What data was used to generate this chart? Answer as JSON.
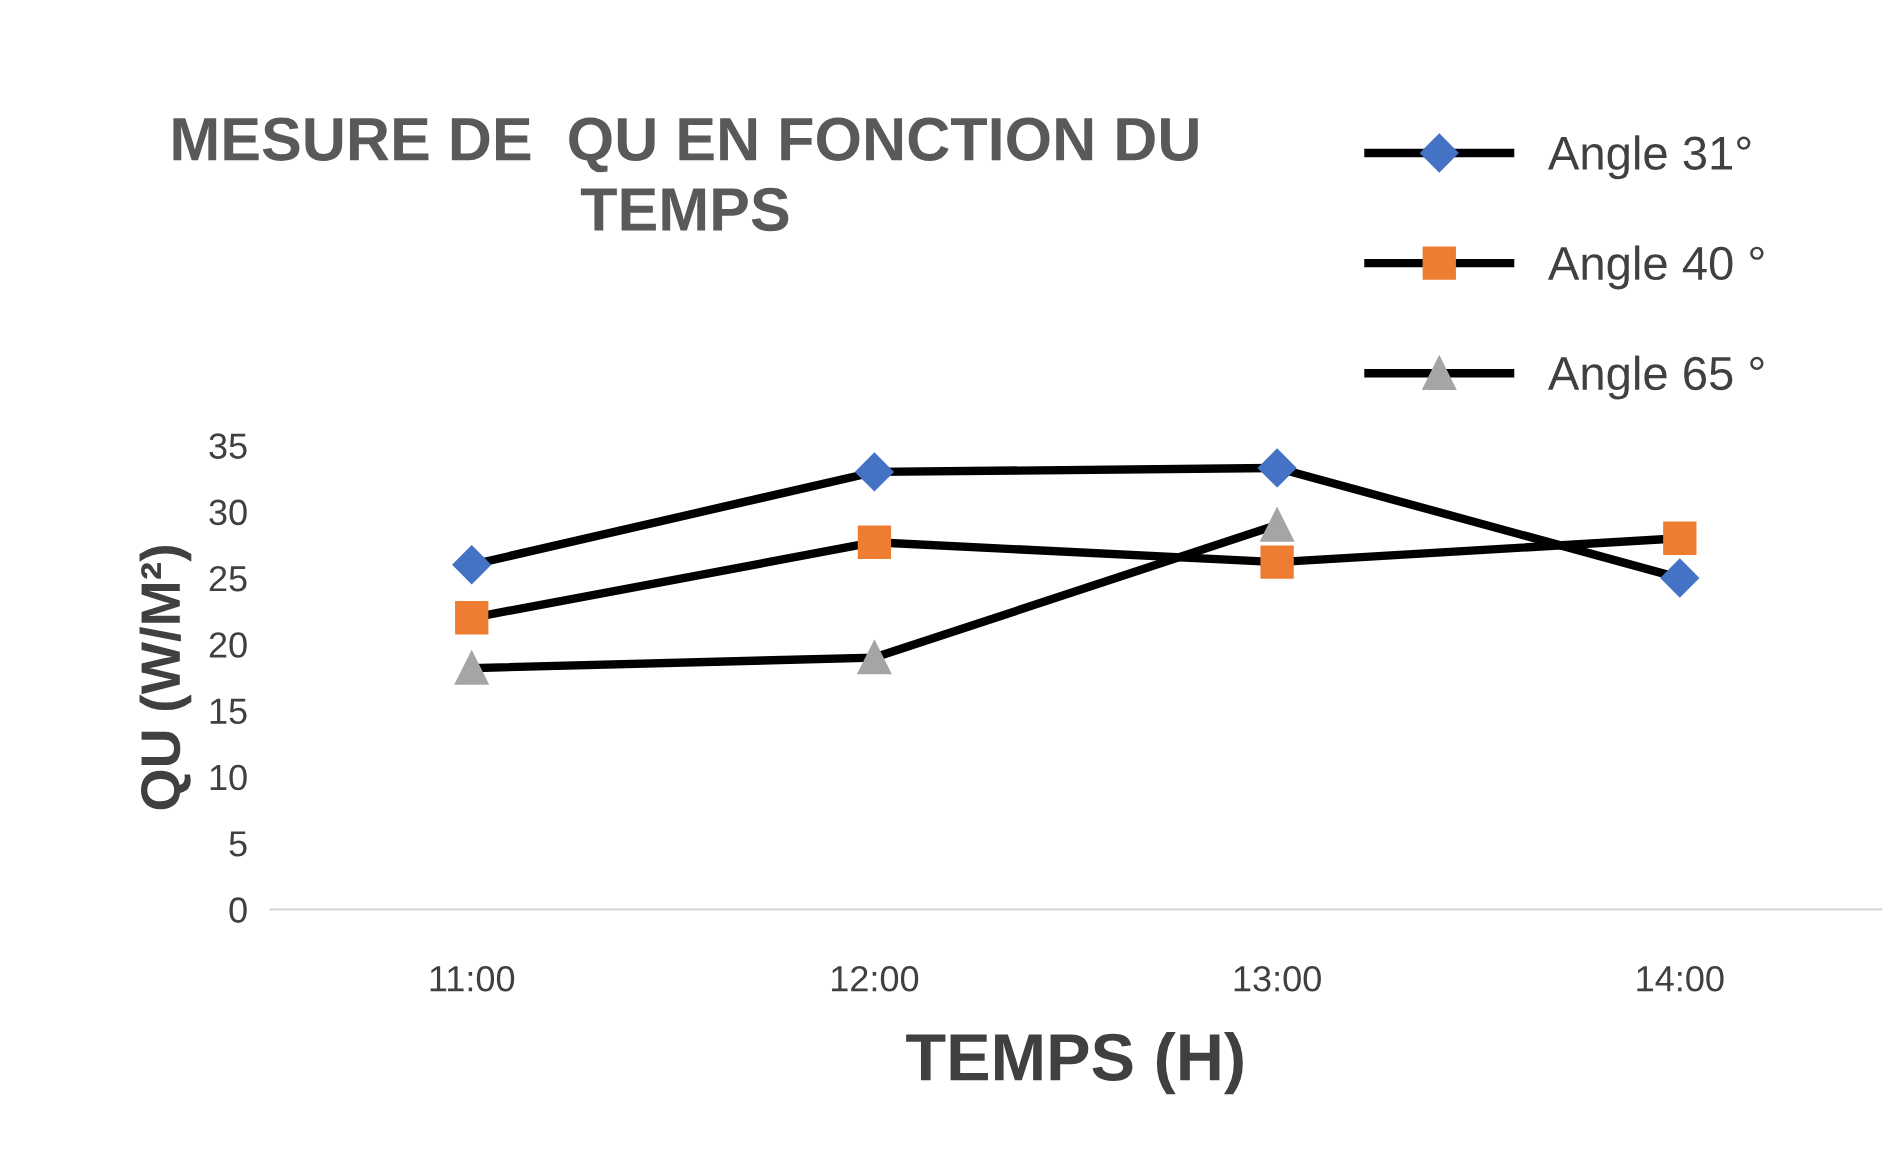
{
  "chart_data": {
    "type": "line",
    "title": "MESURE DE  QU EN FONCTION DU\nTEMPS",
    "xlabel": "TEMPS (H)",
    "ylabel": "QU (W/M²)",
    "categories": [
      "11:00",
      "12:00",
      "13:00",
      "14:00"
    ],
    "series": [
      {
        "name": "Angle 31°",
        "color": "#4472c4",
        "marker": "diamond",
        "values": [
          26,
          33,
          33.3,
          25
        ]
      },
      {
        "name": "Angle 40 °",
        "color": "#ed7d31",
        "marker": "square",
        "values": [
          22,
          27.7,
          26.2,
          28
        ]
      },
      {
        "name": "Angle 65 °",
        "color": "#a5a5a5",
        "marker": "triangle",
        "values": [
          18.2,
          19,
          29,
          null
        ]
      }
    ],
    "ylim": [
      0,
      35
    ],
    "yticks": [
      0,
      5,
      10,
      15,
      20,
      25,
      30,
      35
    ],
    "grid": false,
    "legend": "top right",
    "line_style": "solid"
  }
}
